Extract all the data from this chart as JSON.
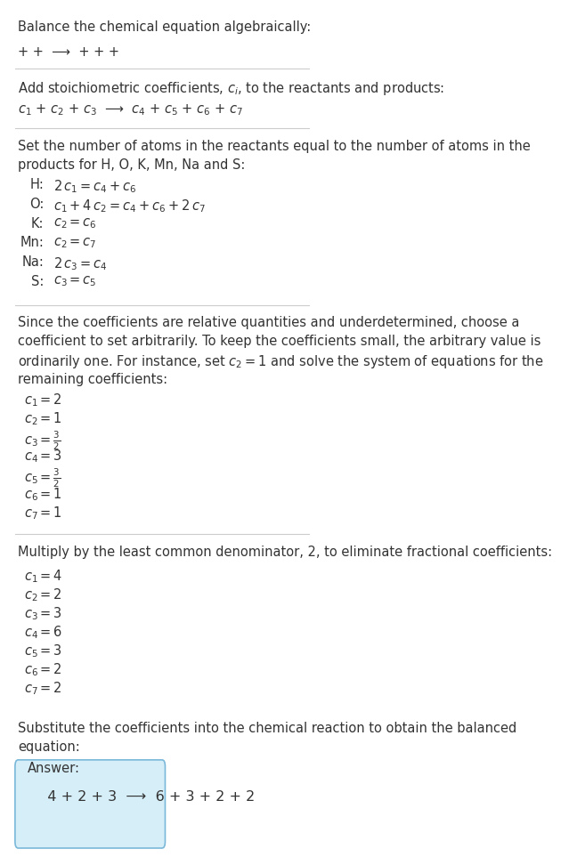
{
  "title": "Balance the chemical equation algebraically:",
  "section1_line1": "+ +  ⟶  + + +",
  "section2_header": "Add stoichiometric coefficients, $c_i$, to the reactants and products:",
  "section2_line1": "$c_1$ + $c_2$ + $c_3$  ⟶  $c_4$ + $c_5$ + $c_6$ + $c_7$",
  "section3_header_1": "Set the number of atoms in the reactants equal to the number of atoms in the",
  "section3_header_2": "products for H, O, K, Mn, Na and S:",
  "section3_equations": [
    [
      " H:",
      "2\\,c_1 = c_4 + c_6"
    ],
    [
      " O:",
      "c_1 + 4\\,c_2 = c_4 + c_6 + 2\\,c_7"
    ],
    [
      " K:",
      "c_2 = c_6"
    ],
    [
      "Mn:",
      "c_2 = c_7"
    ],
    [
      "Na:",
      "2\\,c_3 = c_4"
    ],
    [
      " S:",
      "c_3 = c_5"
    ]
  ],
  "section4_header_1": "Since the coefficients are relative quantities and underdetermined, choose a",
  "section4_header_2": "coefficient to set arbitrarily. To keep the coefficients small, the arbitrary value is",
  "section4_header_3": "ordinarily one. For instance, set $c_2 = 1$ and solve the system of equations for the",
  "section4_header_4": "remaining coefficients:",
  "section4_coeffs": [
    "$c_1 = 2$",
    "$c_2 = 1$",
    "$c_3 = \\frac{3}{2}$",
    "$c_4 = 3$",
    "$c_5 = \\frac{3}{2}$",
    "$c_6 = 1$",
    "$c_7 = 1$"
  ],
  "section5_header": "Multiply by the least common denominator, 2, to eliminate fractional coefficients:",
  "section5_coeffs": [
    "$c_1 = 4$",
    "$c_2 = 2$",
    "$c_3 = 3$",
    "$c_4 = 6$",
    "$c_5 = 3$",
    "$c_6 = 2$",
    "$c_7 = 2$"
  ],
  "section6_header_1": "Substitute the coefficients into the chemical reaction to obtain the balanced",
  "section6_header_2": "equation:",
  "answer_label": "Answer:",
  "answer_line": "   4 + 2 + 3  ⟶  6 + 3 + 2 + 2",
  "bg_color": "#ffffff",
  "text_color": "#333333",
  "answer_box_color": "#d6eef8",
  "answer_box_border": "#7ab8d9",
  "separator_color": "#cccccc",
  "font_size": 10.5
}
